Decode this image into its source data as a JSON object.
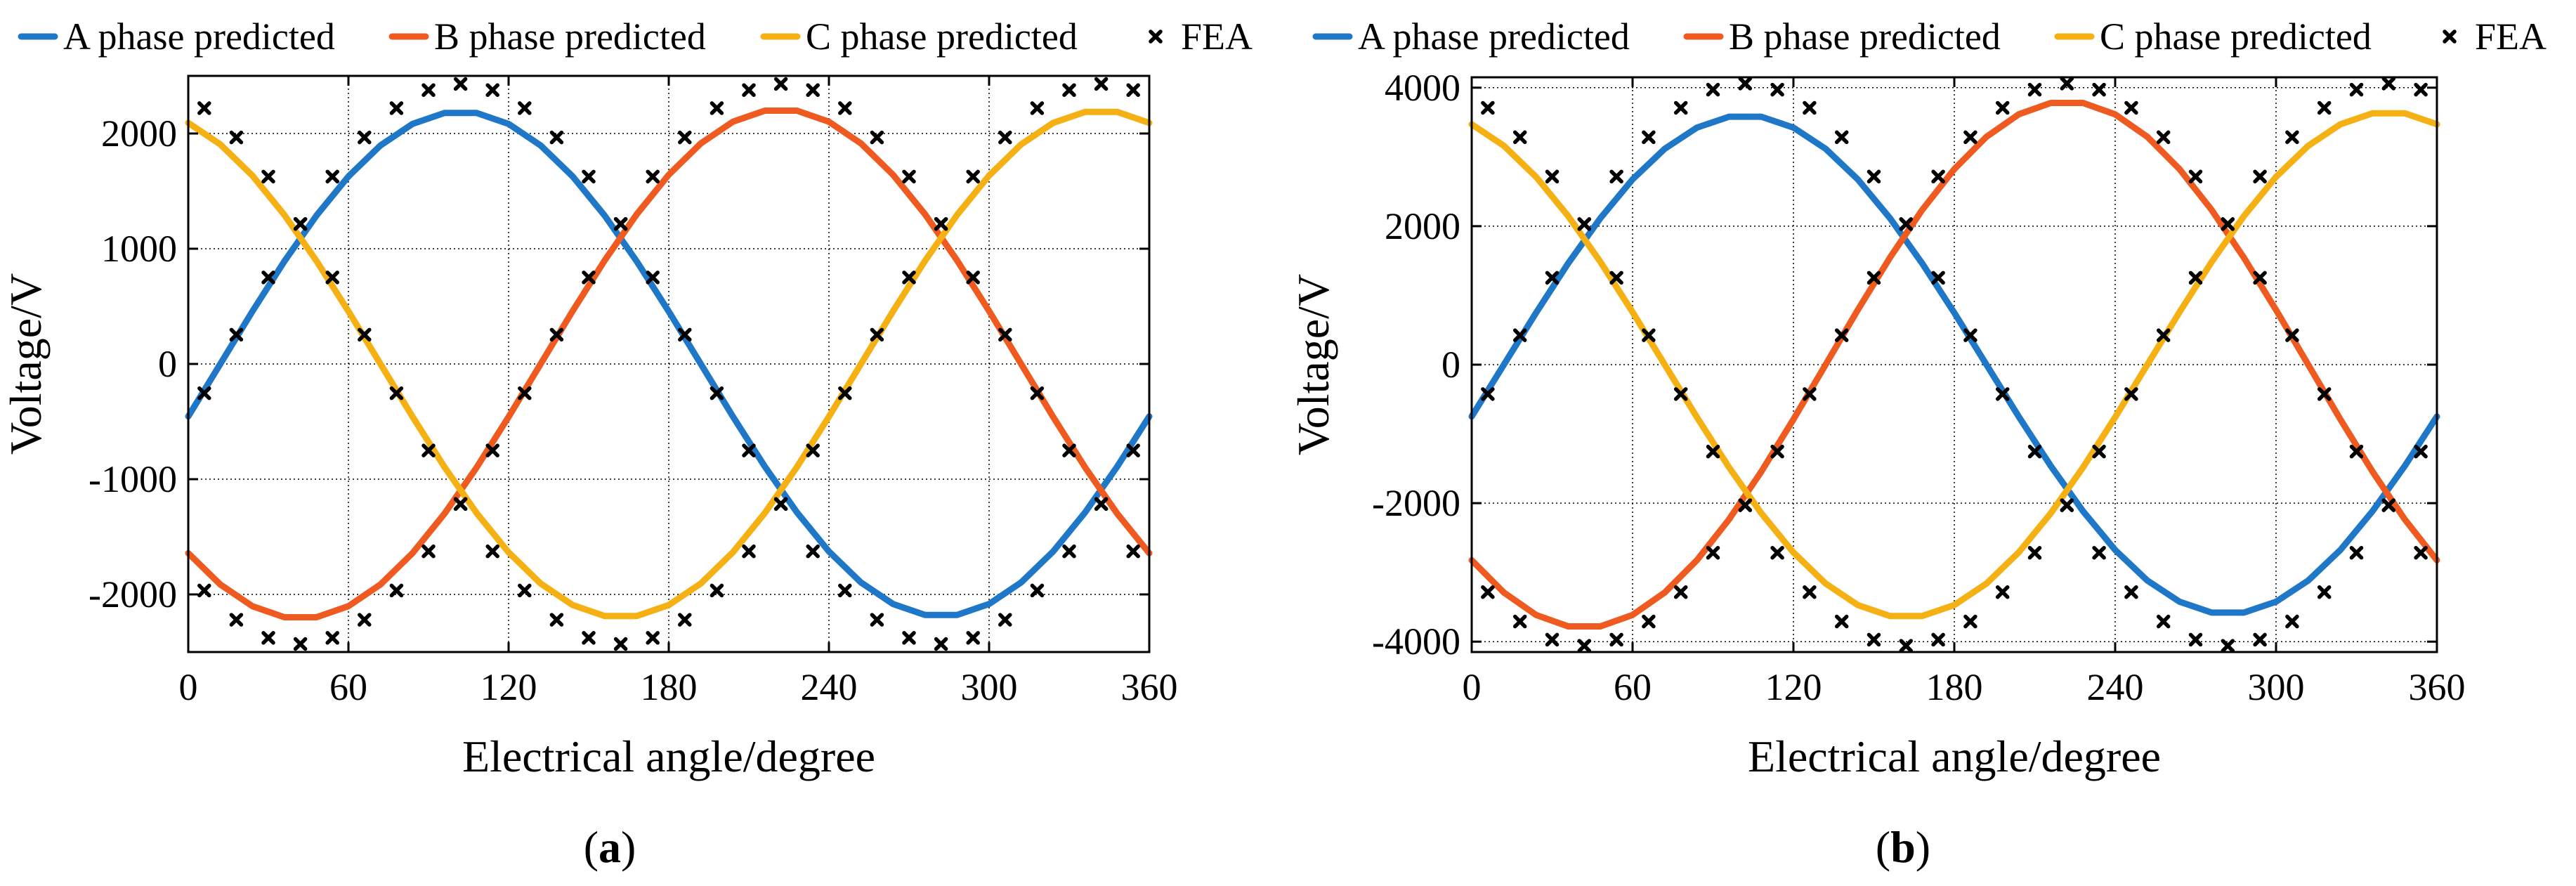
{
  "colors": {
    "A": "#1f77c8",
    "B": "#ee5a1f",
    "C": "#f5b014",
    "FEA": "#000000"
  },
  "chart_data": [
    {
      "id": "a",
      "type": "line",
      "panel_label": "a",
      "xlabel": "Electrical angle/degree",
      "ylabel": "Voltage/V",
      "xlim": [
        0,
        360
      ],
      "ylim": [
        -2500,
        2500
      ],
      "xticks": [
        0,
        60,
        120,
        180,
        240,
        300,
        360
      ],
      "yticks": [
        -2000,
        -1000,
        0,
        1000,
        2000
      ],
      "ytick_labels": [
        "-2000",
        "-1000",
        "0",
        "1000",
        "2000"
      ],
      "grid": true,
      "legend": [
        "A phase predicted",
        "B phase predicted",
        "C phase predicted",
        "FEA"
      ],
      "series": [
        {
          "name": "A phase predicted",
          "color_key": "A",
          "amplitude": 2190,
          "phase_deg": -12,
          "style": "line"
        },
        {
          "name": "B phase predicted",
          "color_key": "B",
          "amplitude": 2210,
          "phase_deg": -132,
          "style": "line"
        },
        {
          "name": "C phase predicted",
          "color_key": "C",
          "amplitude": 2200,
          "phase_deg": 108,
          "style": "line"
        },
        {
          "name": "FEA",
          "color_key": "FEA",
          "amplitude": 2430,
          "phase_deg": -12,
          "style": "markers",
          "step_deg": 12,
          "offset_deg": 6,
          "phases": [
            -12,
            -132,
            108
          ]
        }
      ]
    },
    {
      "id": "b",
      "type": "line",
      "panel_label": "b",
      "xlabel": "Electrical angle/degree",
      "ylabel": "Voltage/V",
      "xlim": [
        0,
        360
      ],
      "ylim": [
        -4150,
        4150
      ],
      "xticks": [
        0,
        60,
        120,
        180,
        240,
        300,
        360
      ],
      "yticks": [
        -4000,
        -2000,
        0,
        2000,
        4000
      ],
      "ytick_labels": [
        "-4000",
        "-2000",
        "0",
        "2000",
        "4000"
      ],
      "grid": true,
      "legend": [
        "A phase predicted",
        "B phase predicted",
        "C phase predicted",
        "FEA"
      ],
      "series": [
        {
          "name": "A phase predicted",
          "color_key": "A",
          "amplitude": 3600,
          "phase_deg": -12,
          "style": "line"
        },
        {
          "name": "B phase predicted",
          "color_key": "B",
          "amplitude": 3800,
          "phase_deg": -132,
          "style": "line"
        },
        {
          "name": "C phase predicted",
          "color_key": "C",
          "amplitude": 3650,
          "phase_deg": 108,
          "style": "line"
        },
        {
          "name": "FEA",
          "color_key": "FEA",
          "amplitude": 4060,
          "phase_deg": -12,
          "style": "markers",
          "step_deg": 12,
          "offset_deg": 6,
          "phases": [
            -12,
            -132,
            108
          ]
        }
      ]
    }
  ]
}
